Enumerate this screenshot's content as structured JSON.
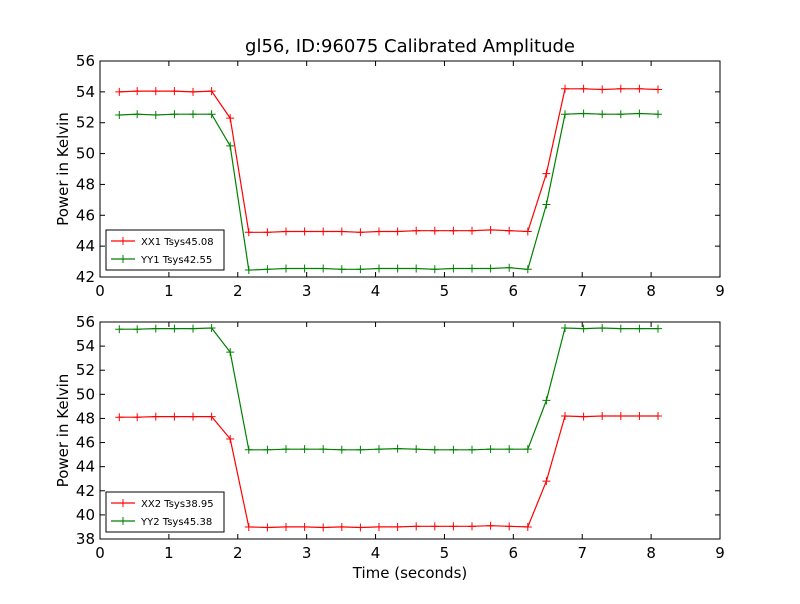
{
  "title": "gl56, ID:96075 Calibrated Amplitude",
  "xlabel": "Time (seconds)",
  "chart_data": [
    {
      "type": "line",
      "title": "gl56, ID:96075 Calibrated Amplitude",
      "xlabel": "",
      "ylabel": "Power in Kelvin",
      "xlim": [
        0,
        9
      ],
      "ylim": [
        42,
        56
      ],
      "xticks": [
        0,
        1,
        2,
        3,
        4,
        5,
        6,
        7,
        8,
        9
      ],
      "yticks": [
        42,
        44,
        46,
        48,
        50,
        52,
        54,
        56
      ],
      "grid": false,
      "legend_position": "lower-left",
      "x": [
        0.28,
        0.54,
        0.81,
        1.08,
        1.35,
        1.62,
        1.89,
        2.16,
        2.43,
        2.7,
        2.97,
        3.24,
        3.51,
        3.78,
        4.05,
        4.32,
        4.59,
        4.86,
        5.13,
        5.4,
        5.67,
        5.94,
        6.21,
        6.48,
        6.75,
        7.02,
        7.29,
        7.56,
        7.83,
        8.1
      ],
      "series": [
        {
          "name": "XX1 Tsys45.08",
          "color": "#ff0000",
          "values": [
            54.0,
            54.05,
            54.05,
            54.05,
            54.0,
            54.05,
            52.3,
            44.9,
            44.9,
            44.95,
            44.95,
            44.95,
            44.95,
            44.9,
            44.95,
            44.95,
            45.0,
            45.0,
            45.0,
            45.0,
            45.05,
            45.0,
            44.95,
            48.7,
            54.2,
            54.2,
            54.15,
            54.2,
            54.2,
            54.15
          ]
        },
        {
          "name": "YY1 Tsys42.55",
          "color": "#008000",
          "values": [
            52.5,
            52.55,
            52.5,
            52.55,
            52.55,
            52.55,
            50.5,
            42.45,
            42.5,
            42.55,
            42.55,
            42.55,
            42.5,
            42.5,
            42.55,
            42.55,
            42.55,
            42.5,
            42.55,
            42.55,
            42.55,
            42.6,
            42.5,
            46.7,
            52.55,
            52.6,
            52.55,
            52.55,
            52.6,
            52.55
          ]
        }
      ]
    },
    {
      "type": "line",
      "title": "",
      "xlabel": "Time (seconds)",
      "ylabel": "Power in Kelvin",
      "xlim": [
        0,
        9
      ],
      "ylim": [
        38,
        56
      ],
      "xticks": [
        0,
        1,
        2,
        3,
        4,
        5,
        6,
        7,
        8,
        9
      ],
      "yticks": [
        38,
        40,
        42,
        44,
        46,
        48,
        50,
        52,
        54,
        56
      ],
      "grid": false,
      "legend_position": "lower-left",
      "x": [
        0.28,
        0.54,
        0.81,
        1.08,
        1.35,
        1.62,
        1.89,
        2.16,
        2.43,
        2.7,
        2.97,
        3.24,
        3.51,
        3.78,
        4.05,
        4.32,
        4.59,
        4.86,
        5.13,
        5.4,
        5.67,
        5.94,
        6.21,
        6.48,
        6.75,
        7.02,
        7.29,
        7.56,
        7.83,
        8.1
      ],
      "series": [
        {
          "name": "XX2 Tsys38.95",
          "color": "#ff0000",
          "values": [
            48.1,
            48.1,
            48.15,
            48.15,
            48.15,
            48.15,
            46.3,
            39.0,
            38.95,
            39.0,
            39.0,
            38.95,
            39.0,
            38.95,
            39.0,
            39.0,
            39.05,
            39.05,
            39.05,
            39.05,
            39.1,
            39.05,
            39.0,
            42.8,
            48.2,
            48.15,
            48.2,
            48.2,
            48.2,
            48.2
          ]
        },
        {
          "name": "YY2 Tsys45.38",
          "color": "#008000",
          "values": [
            55.4,
            55.4,
            55.45,
            55.45,
            55.45,
            55.5,
            53.5,
            45.4,
            45.4,
            45.45,
            45.45,
            45.45,
            45.4,
            45.4,
            45.45,
            45.5,
            45.45,
            45.4,
            45.4,
            45.4,
            45.45,
            45.45,
            45.45,
            49.5,
            55.5,
            55.45,
            55.5,
            55.45,
            55.45,
            55.45
          ]
        }
      ]
    }
  ]
}
